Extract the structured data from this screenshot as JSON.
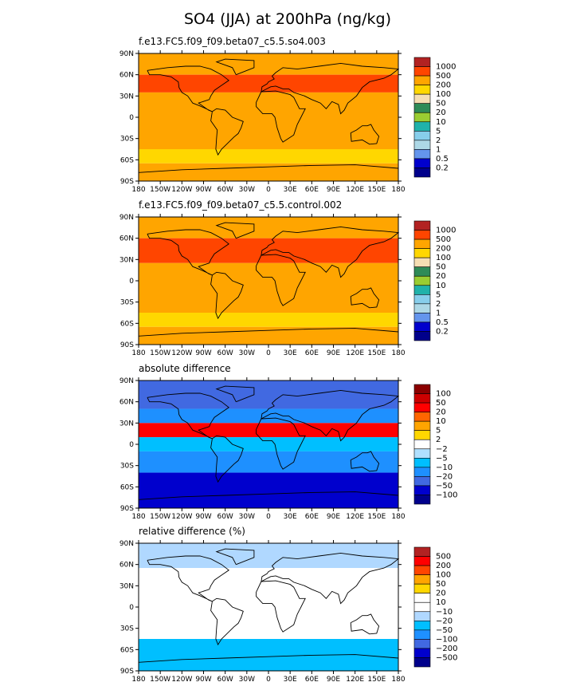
{
  "title": "SO4 (JJA) at 200hPa (ng/kg)",
  "lon_labels": [
    "180",
    "150W",
    "120W",
    "90W",
    "60W",
    "30W",
    "0",
    "30E",
    "60E",
    "90E",
    "120E",
    "150E",
    "180"
  ],
  "lat_labels": [
    "90N",
    "60N",
    "30N",
    "0",
    "30S",
    "60S",
    "90S"
  ],
  "chart_data": [
    {
      "type": "heatmap",
      "title": "f.e13.FC5.f09_f09.beta07_c5.5.so4.003",
      "xlim": [
        -180,
        180
      ],
      "ylim": [
        -90,
        90
      ],
      "colorbar": {
        "labels": [
          "1000",
          "500",
          "200",
          "100",
          "50",
          "20",
          "10",
          "5",
          "2",
          "1",
          "0.5",
          "0.2"
        ],
        "colors": [
          "#b22222",
          "#ff4500",
          "#ffa500",
          "#ffd700",
          "#f5deb3",
          "#2e8b57",
          "#9acd32",
          "#20b2aa",
          "#87ceeb",
          "#add8e6",
          "#6495ed",
          "#0000cd",
          "#00008b"
        ]
      },
      "bands": [
        {
          "lat": [
            60,
            90
          ],
          "value": 200
        },
        {
          "lat": [
            35,
            60
          ],
          "value": 500
        },
        {
          "lat": [
            -45,
            35
          ],
          "value": 200
        },
        {
          "lat": [
            -65,
            -45
          ],
          "value": 100
        },
        {
          "lat": [
            -90,
            -65
          ],
          "value": 200
        }
      ]
    },
    {
      "type": "heatmap",
      "title": "f.e13.FC5.f09_f09.beta07_c5.5.control.002",
      "xlim": [
        -180,
        180
      ],
      "ylim": [
        -90,
        90
      ],
      "colorbar": {
        "labels": [
          "1000",
          "500",
          "200",
          "100",
          "50",
          "20",
          "10",
          "5",
          "2",
          "1",
          "0.5",
          "0.2"
        ],
        "colors": [
          "#b22222",
          "#ff4500",
          "#ffa500",
          "#ffd700",
          "#f5deb3",
          "#2e8b57",
          "#9acd32",
          "#20b2aa",
          "#87ceeb",
          "#add8e6",
          "#6495ed",
          "#0000cd",
          "#00008b"
        ]
      },
      "bands": [
        {
          "lat": [
            60,
            90
          ],
          "value": 200
        },
        {
          "lat": [
            25,
            60
          ],
          "value": 500
        },
        {
          "lat": [
            -45,
            25
          ],
          "value": 200
        },
        {
          "lat": [
            -65,
            -45
          ],
          "value": 100
        },
        {
          "lat": [
            -90,
            -65
          ],
          "value": 200
        }
      ]
    },
    {
      "type": "heatmap",
      "title": "absolute difference",
      "xlim": [
        -180,
        180
      ],
      "ylim": [
        -90,
        90
      ],
      "colorbar": {
        "labels": [
          "100",
          "50",
          "20",
          "10",
          "5",
          "2",
          "−2",
          "−5",
          "−10",
          "−20",
          "−50",
          "−100"
        ],
        "colors": [
          "#8b0000",
          "#cc0000",
          "#ff0000",
          "#ff6600",
          "#ffa500",
          "#ffd700",
          "#ffffff",
          "#b0e0ff",
          "#00bfff",
          "#1e90ff",
          "#4169e1",
          "#0000cd",
          "#00008b"
        ]
      },
      "bands": [
        {
          "lat": [
            50,
            90
          ],
          "value": -50
        },
        {
          "lat": [
            30,
            50
          ],
          "value": -20
        },
        {
          "lat": [
            10,
            30
          ],
          "value": 20
        },
        {
          "lat": [
            -10,
            10
          ],
          "value": -10
        },
        {
          "lat": [
            -40,
            -10
          ],
          "value": -20
        },
        {
          "lat": [
            -90,
            -40
          ],
          "value": -100
        }
      ]
    },
    {
      "type": "heatmap",
      "title": "relative difference (%)",
      "xlim": [
        -180,
        180
      ],
      "ylim": [
        -90,
        90
      ],
      "colorbar": {
        "labels": [
          "500",
          "200",
          "100",
          "50",
          "20",
          "10",
          "−10",
          "−20",
          "−50",
          "−100",
          "−200",
          "−500"
        ],
        "colors": [
          "#b22222",
          "#ff0000",
          "#ff4500",
          "#ffa500",
          "#ffd700",
          "#ffffff",
          "#ffffff",
          "#b0d8ff",
          "#00bfff",
          "#1e90ff",
          "#4169e1",
          "#0000cd",
          "#00008b"
        ]
      },
      "bands": [
        {
          "lat": [
            55,
            90
          ],
          "value": -20
        },
        {
          "lat": [
            -45,
            55
          ],
          "value": 0
        },
        {
          "lat": [
            -90,
            -45
          ],
          "value": -50
        }
      ]
    }
  ]
}
